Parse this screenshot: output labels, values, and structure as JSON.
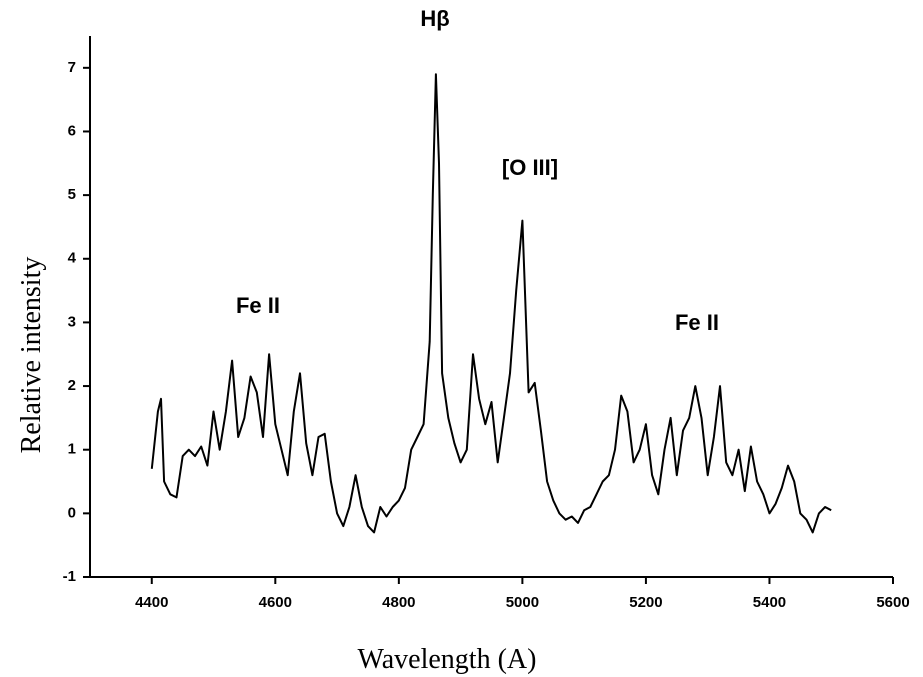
{
  "chart_data": {
    "type": "line",
    "x_label": "Wavelength (A)",
    "y_label": "Relative intensity",
    "annotations": [
      "Hβ",
      "[O III]",
      "Fe II",
      "Fe II"
    ],
    "xlim": [
      4300,
      5600
    ],
    "xticks": [
      4400,
      4600,
      4800,
      5000,
      5200,
      5400,
      5600
    ],
    "ylim": [
      -1,
      7.5
    ],
    "yticks": [
      -1,
      0,
      1,
      2,
      3,
      4,
      5,
      6,
      7
    ],
    "series": [
      {
        "color": "#000000",
        "x": [
          4400,
          4410,
          4415,
          4420,
          4430,
          4440,
          4450,
          4460,
          4470,
          4480,
          4490,
          4500,
          4510,
          4520,
          4530,
          4540,
          4550,
          4560,
          4570,
          4580,
          4590,
          4600,
          4610,
          4620,
          4630,
          4640,
          4650,
          4660,
          4670,
          4680,
          4690,
          4700,
          4710,
          4720,
          4730,
          4740,
          4750,
          4760,
          4770,
          4780,
          4790,
          4800,
          4810,
          4820,
          4830,
          4840,
          4850,
          4855,
          4860,
          4865,
          4870,
          4880,
          4890,
          4900,
          4910,
          4920,
          4930,
          4940,
          4950,
          4960,
          4970,
          4980,
          4990,
          5000,
          5010,
          5020,
          5030,
          5040,
          5050,
          5060,
          5070,
          5080,
          5090,
          5100,
          5110,
          5120,
          5130,
          5140,
          5150,
          5160,
          5170,
          5180,
          5190,
          5200,
          5210,
          5220,
          5230,
          5240,
          5250,
          5260,
          5270,
          5280,
          5290,
          5300,
          5310,
          5320,
          5330,
          5340,
          5350,
          5360,
          5370,
          5380,
          5390,
          5400,
          5410,
          5420,
          5430,
          5440,
          5450,
          5460,
          5470,
          5480,
          5490,
          5500
        ],
        "values": [
          0.7,
          1.6,
          1.8,
          0.5,
          0.3,
          0.25,
          0.9,
          1.0,
          0.9,
          1.05,
          0.75,
          1.6,
          1.0,
          1.6,
          2.4,
          1.2,
          1.5,
          2.15,
          1.9,
          1.2,
          2.5,
          1.4,
          1.0,
          0.6,
          1.6,
          2.2,
          1.1,
          0.6,
          1.2,
          1.25,
          0.5,
          0.0,
          -0.2,
          0.1,
          0.6,
          0.1,
          -0.2,
          -0.3,
          0.1,
          -0.05,
          0.1,
          0.2,
          0.4,
          1.0,
          1.2,
          1.4,
          2.7,
          5.0,
          6.9,
          5.5,
          2.2,
          1.5,
          1.1,
          0.8,
          1.0,
          2.5,
          1.8,
          1.4,
          1.75,
          0.8,
          1.5,
          2.2,
          3.5,
          4.6,
          1.9,
          2.05,
          1.3,
          0.5,
          0.2,
          0.0,
          -0.1,
          -0.05,
          -0.15,
          0.05,
          0.1,
          0.3,
          0.5,
          0.6,
          1.0,
          1.85,
          1.6,
          0.8,
          1.0,
          1.4,
          0.6,
          0.3,
          1.0,
          1.5,
          0.6,
          1.3,
          1.5,
          2.0,
          1.5,
          0.6,
          1.2,
          2.0,
          0.8,
          0.6,
          1.0,
          0.35,
          1.05,
          0.5,
          0.3,
          0.0,
          0.15,
          0.4,
          0.75,
          0.5,
          0.0,
          -0.1,
          -0.3,
          0.0,
          0.1,
          0.05
        ]
      }
    ]
  }
}
